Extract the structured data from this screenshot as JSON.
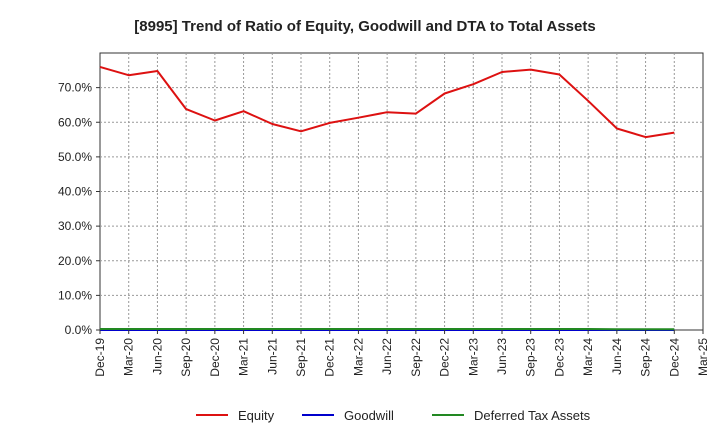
{
  "chart_data": {
    "type": "line",
    "title": "[8995]  Trend of Ratio of Equity, Goodwill and DTA to Total Assets",
    "xlabel": "",
    "ylabel": "",
    "ylim": [
      0,
      80
    ],
    "y_ticks": [
      0,
      10,
      20,
      30,
      40,
      50,
      60,
      70
    ],
    "y_tick_labels": [
      "0.0%",
      "10.0%",
      "20.0%",
      "30.0%",
      "40.0%",
      "50.0%",
      "60.0%",
      "70.0%"
    ],
    "grid": true,
    "legend_position": "bottom",
    "categories": [
      "Dec-19",
      "Mar-20",
      "Jun-20",
      "Sep-20",
      "Dec-20",
      "Mar-21",
      "Jun-21",
      "Sep-21",
      "Dec-21",
      "Mar-22",
      "Jun-22",
      "Sep-22",
      "Dec-22",
      "Mar-23",
      "Jun-23",
      "Sep-23",
      "Dec-23",
      "Mar-24",
      "Jun-24",
      "Sep-24",
      "Dec-24",
      "Mar-25"
    ],
    "series": [
      {
        "name": "Equity",
        "color": "#dd1111",
        "values": [
          76.0,
          73.6,
          74.8,
          63.8,
          60.5,
          63.2,
          59.5,
          57.4,
          59.8,
          61.3,
          62.9,
          62.5,
          68.3,
          71.0,
          74.5,
          75.2,
          73.8,
          66.2,
          58.2,
          55.7,
          57.0,
          null
        ]
      },
      {
        "name": "Goodwill",
        "color": "#0000cc",
        "values": [
          0.0,
          0.0,
          0.0,
          0.0,
          0.0,
          0.0,
          0.0,
          0.0,
          0.0,
          0.0,
          0.0,
          0.0,
          0.0,
          0.0,
          0.0,
          0.0,
          0.0,
          0.0,
          0.0,
          0.0,
          0.0,
          null
        ]
      },
      {
        "name": "Deferred Tax Assets",
        "color": "#228822",
        "values": [
          0.3,
          0.3,
          0.3,
          0.3,
          0.3,
          0.3,
          0.3,
          0.3,
          0.3,
          0.3,
          0.3,
          0.3,
          0.3,
          0.3,
          0.3,
          0.3,
          0.3,
          0.3,
          0.2,
          0.2,
          0.2,
          null
        ]
      }
    ]
  }
}
